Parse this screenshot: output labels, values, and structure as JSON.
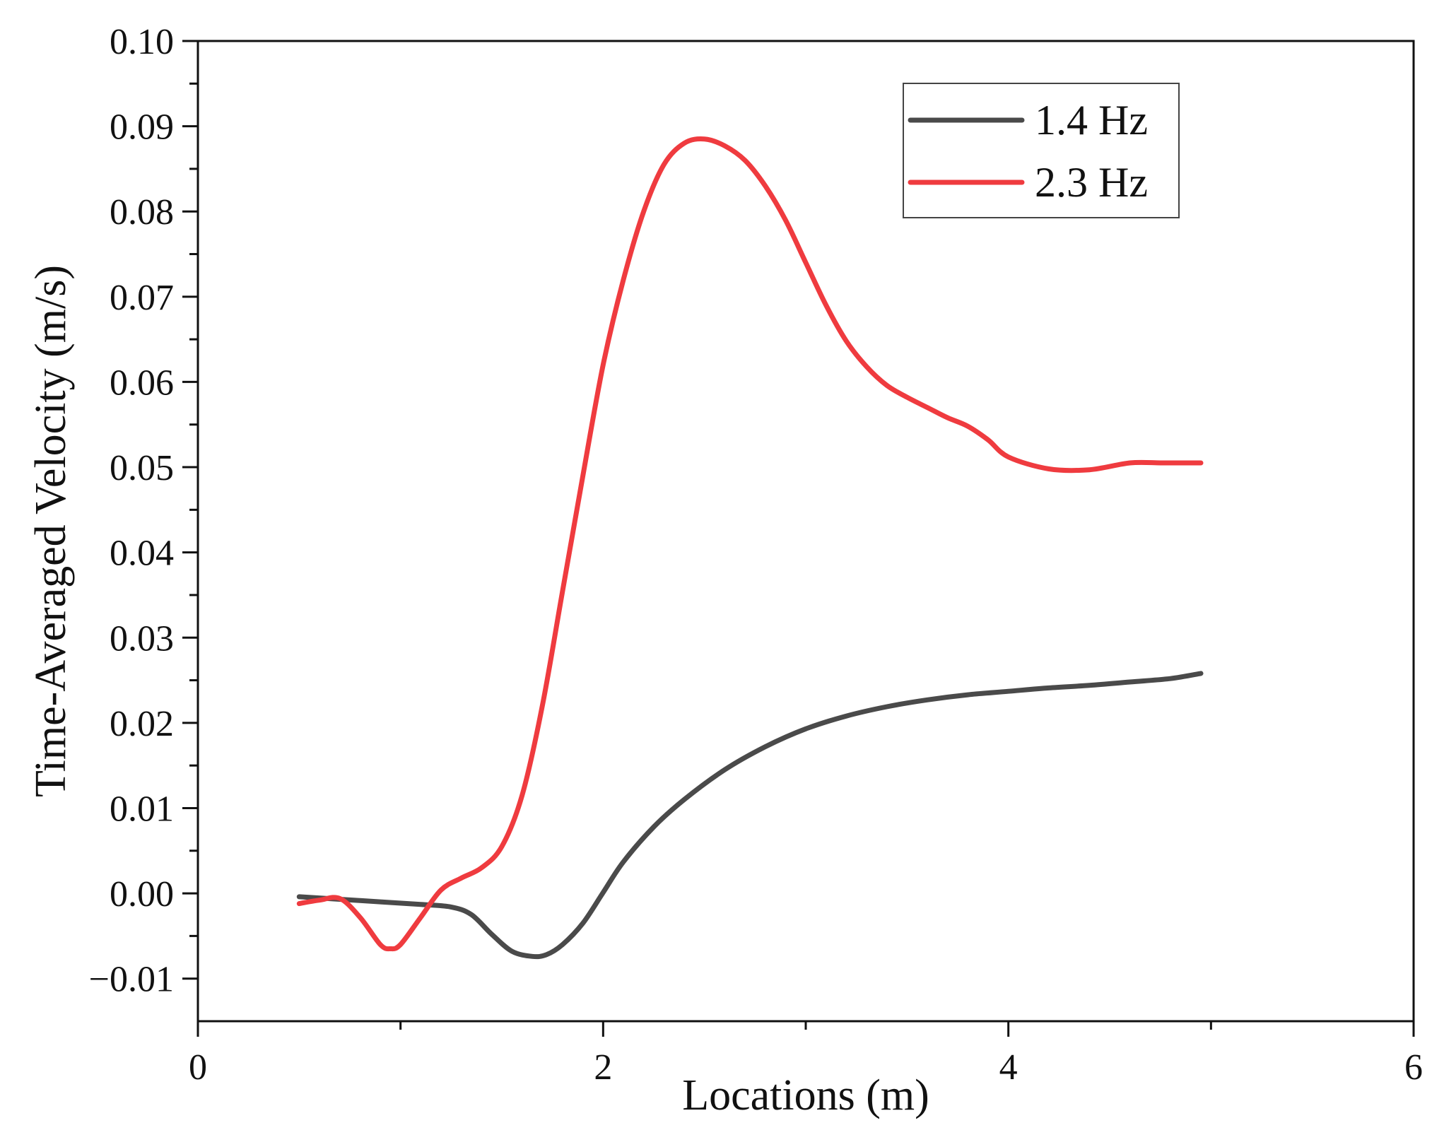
{
  "chart_data": {
    "type": "line",
    "title": "",
    "xlabel": "Locations (m)",
    "ylabel": "Time-Averaged Velocity (m/s)",
    "xlim": [
      0,
      6
    ],
    "ylim": [
      -0.015,
      0.1
    ],
    "x_major_ticks": [
      0,
      2,
      4,
      6
    ],
    "x_tick_labels": [
      "0",
      "2",
      "4",
      "6"
    ],
    "x_minor_ticks": [
      1,
      3,
      5
    ],
    "y_major_ticks": [
      -0.01,
      0.0,
      0.01,
      0.02,
      0.03,
      0.04,
      0.05,
      0.06,
      0.07,
      0.08,
      0.09,
      0.1
    ],
    "y_tick_labels": [
      "−0.01",
      "0.00",
      "0.01",
      "0.02",
      "0.03",
      "0.04",
      "0.05",
      "0.06",
      "0.07",
      "0.08",
      "0.09",
      "0.10"
    ],
    "grid": false,
    "legend_position": "top-right",
    "series": [
      {
        "name": "1.4 Hz",
        "color": "#4a4a4a",
        "x": [
          0.5,
          0.7,
          0.9,
          1.1,
          1.25,
          1.35,
          1.45,
          1.55,
          1.65,
          1.72,
          1.8,
          1.9,
          2.0,
          2.1,
          2.25,
          2.4,
          2.6,
          2.8,
          3.0,
          3.2,
          3.4,
          3.6,
          3.8,
          4.0,
          4.2,
          4.4,
          4.6,
          4.8,
          4.95
        ],
        "values": [
          -0.0004,
          -0.0007,
          -0.001,
          -0.0013,
          -0.0016,
          -0.0025,
          -0.0048,
          -0.0068,
          -0.0074,
          -0.0072,
          -0.006,
          -0.0035,
          0.0001,
          0.0037,
          0.0078,
          0.011,
          0.0145,
          0.0172,
          0.0193,
          0.0208,
          0.0219,
          0.0227,
          0.0233,
          0.0237,
          0.0241,
          0.0244,
          0.0248,
          0.0252,
          0.0258
        ]
      },
      {
        "name": "2.3 Hz",
        "color": "#ef3b3f",
        "x": [
          0.5,
          0.6,
          0.7,
          0.8,
          0.9,
          0.95,
          1.0,
          1.1,
          1.2,
          1.3,
          1.4,
          1.5,
          1.6,
          1.7,
          1.8,
          1.9,
          2.0,
          2.1,
          2.2,
          2.3,
          2.4,
          2.5,
          2.6,
          2.7,
          2.8,
          2.9,
          3.0,
          3.1,
          3.2,
          3.3,
          3.4,
          3.5,
          3.6,
          3.7,
          3.8,
          3.9,
          4.0,
          4.2,
          4.4,
          4.6,
          4.75,
          4.85,
          4.95
        ],
        "values": [
          -0.0012,
          -0.0008,
          -0.0006,
          -0.0028,
          -0.006,
          -0.0065,
          -0.006,
          -0.0028,
          0.0004,
          0.0018,
          0.003,
          0.0055,
          0.0115,
          0.022,
          0.0355,
          0.049,
          0.062,
          0.072,
          0.08,
          0.0855,
          0.088,
          0.0885,
          0.0877,
          0.086,
          0.083,
          0.079,
          0.074,
          0.069,
          0.0648,
          0.0618,
          0.0596,
          0.0582,
          0.057,
          0.0558,
          0.0548,
          0.0532,
          0.0512,
          0.0498,
          0.0497,
          0.0505,
          0.0505,
          0.0505,
          0.0505
        ]
      }
    ]
  }
}
